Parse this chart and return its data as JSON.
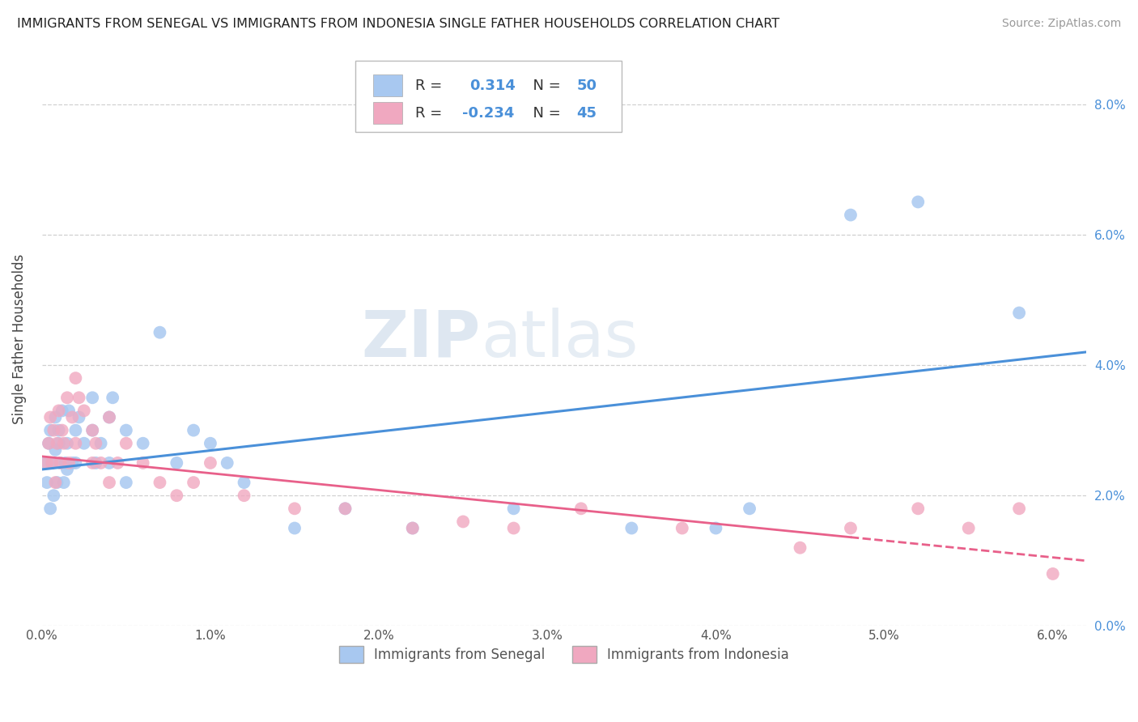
{
  "title": "IMMIGRANTS FROM SENEGAL VS IMMIGRANTS FROM INDONESIA SINGLE FATHER HOUSEHOLDS CORRELATION CHART",
  "source": "Source: ZipAtlas.com",
  "ylabel": "Single Father Households",
  "xlim": [
    0.0,
    0.062
  ],
  "ylim": [
    0.0,
    0.088
  ],
  "xtick_values": [
    0.0,
    0.01,
    0.02,
    0.03,
    0.04,
    0.05,
    0.06
  ],
  "ytick_values": [
    0.0,
    0.02,
    0.04,
    0.06,
    0.08
  ],
  "legend1_r": "0.314",
  "legend1_n": "50",
  "legend2_r": "-0.234",
  "legend2_n": "45",
  "color_senegal": "#a8c8f0",
  "color_indonesia": "#f0a8c0",
  "line_color_senegal": "#4a90d9",
  "line_color_indonesia": "#e8608a",
  "grid_color": "#d0d0d0",
  "background_color": "#ffffff",
  "scatter_senegal_x": [
    0.0002,
    0.0003,
    0.0004,
    0.0005,
    0.0005,
    0.0006,
    0.0007,
    0.0008,
    0.0008,
    0.0009,
    0.001,
    0.001,
    0.0011,
    0.0012,
    0.0013,
    0.0014,
    0.0015,
    0.0015,
    0.0016,
    0.0018,
    0.002,
    0.002,
    0.0022,
    0.0025,
    0.003,
    0.003,
    0.0032,
    0.0035,
    0.004,
    0.004,
    0.0042,
    0.005,
    0.005,
    0.006,
    0.007,
    0.008,
    0.009,
    0.01,
    0.011,
    0.012,
    0.015,
    0.018,
    0.022,
    0.028,
    0.035,
    0.04,
    0.042,
    0.048,
    0.052,
    0.058
  ],
  "scatter_senegal_y": [
    0.025,
    0.022,
    0.028,
    0.03,
    0.018,
    0.025,
    0.02,
    0.032,
    0.027,
    0.022,
    0.028,
    0.03,
    0.025,
    0.033,
    0.022,
    0.025,
    0.028,
    0.024,
    0.033,
    0.025,
    0.03,
    0.025,
    0.032,
    0.028,
    0.03,
    0.035,
    0.025,
    0.028,
    0.032,
    0.025,
    0.035,
    0.03,
    0.022,
    0.028,
    0.045,
    0.025,
    0.03,
    0.028,
    0.025,
    0.022,
    0.015,
    0.018,
    0.015,
    0.018,
    0.015,
    0.015,
    0.018,
    0.063,
    0.065,
    0.048
  ],
  "scatter_indonesia_x": [
    0.0003,
    0.0004,
    0.0005,
    0.0006,
    0.0007,
    0.0008,
    0.0009,
    0.001,
    0.0011,
    0.0012,
    0.0013,
    0.0015,
    0.0016,
    0.0018,
    0.002,
    0.002,
    0.0022,
    0.0025,
    0.003,
    0.003,
    0.0032,
    0.0035,
    0.004,
    0.004,
    0.0045,
    0.005,
    0.006,
    0.007,
    0.008,
    0.009,
    0.01,
    0.012,
    0.015,
    0.018,
    0.022,
    0.025,
    0.028,
    0.032,
    0.038,
    0.045,
    0.048,
    0.052,
    0.055,
    0.058,
    0.06
  ],
  "scatter_indonesia_y": [
    0.025,
    0.028,
    0.032,
    0.025,
    0.03,
    0.022,
    0.028,
    0.033,
    0.025,
    0.03,
    0.028,
    0.035,
    0.025,
    0.032,
    0.038,
    0.028,
    0.035,
    0.033,
    0.025,
    0.03,
    0.028,
    0.025,
    0.032,
    0.022,
    0.025,
    0.028,
    0.025,
    0.022,
    0.02,
    0.022,
    0.025,
    0.02,
    0.018,
    0.018,
    0.015,
    0.016,
    0.015,
    0.018,
    0.015,
    0.012,
    0.015,
    0.018,
    0.015,
    0.018,
    0.008
  ],
  "senegal_line_x0": 0.0,
  "senegal_line_y0": 0.024,
  "senegal_line_x1": 0.062,
  "senegal_line_y1": 0.042,
  "indonesia_line_x0": 0.0,
  "indonesia_line_y0": 0.026,
  "indonesia_line_x1": 0.062,
  "indonesia_line_y1": 0.01
}
